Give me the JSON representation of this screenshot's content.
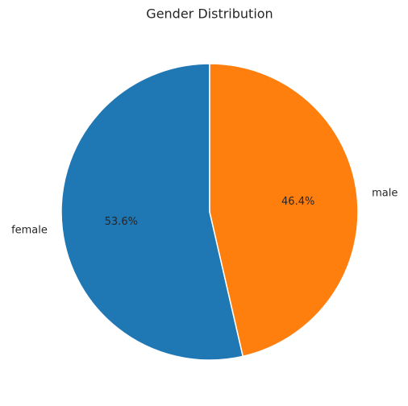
{
  "chart_data": {
    "type": "pie",
    "title": "Gender Distribution",
    "categories": [
      "female",
      "male"
    ],
    "values": [
      53.6,
      46.4
    ],
    "value_labels": [
      "53.6%",
      "46.4%"
    ],
    "colors": [
      "#1f77b4",
      "#ff7f0e"
    ]
  }
}
